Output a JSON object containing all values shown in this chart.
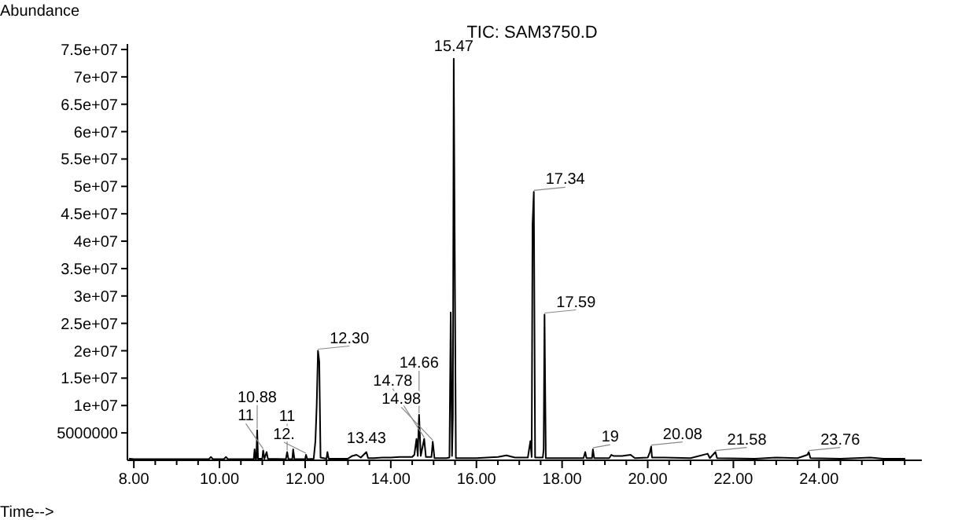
{
  "chart_data": {
    "type": "line",
    "title": "TIC: SAM3750.D",
    "xlabel": "Time-->",
    "ylabel": "Abundance",
    "xlim": [
      7.85,
      26.4
    ],
    "ylim": [
      0,
      76000000.0
    ],
    "xticks": [
      {
        "value": 8,
        "label": "8.00"
      },
      {
        "value": 8.5,
        "label": null
      },
      {
        "value": 9,
        "label": null
      },
      {
        "value": 9.5,
        "label": null
      },
      {
        "value": 10,
        "label": "10.00"
      },
      {
        "value": 10.5,
        "label": null
      },
      {
        "value": 11,
        "label": null
      },
      {
        "value": 11.5,
        "label": null
      },
      {
        "value": 12,
        "label": "12.00"
      },
      {
        "value": 12.5,
        "label": null
      },
      {
        "value": 13,
        "label": null
      },
      {
        "value": 13.5,
        "label": null
      },
      {
        "value": 14,
        "label": "14.00"
      },
      {
        "value": 14.5,
        "label": null
      },
      {
        "value": 15,
        "label": null
      },
      {
        "value": 15.5,
        "label": null
      },
      {
        "value": 16,
        "label": "16.00"
      },
      {
        "value": 16.5,
        "label": null
      },
      {
        "value": 17,
        "label": null
      },
      {
        "value": 17.5,
        "label": null
      },
      {
        "value": 18,
        "label": "18.00"
      },
      {
        "value": 18.5,
        "label": null
      },
      {
        "value": 19,
        "label": null
      },
      {
        "value": 19.5,
        "label": null
      },
      {
        "value": 20,
        "label": "20.00"
      },
      {
        "value": 20.5,
        "label": null
      },
      {
        "value": 21,
        "label": null
      },
      {
        "value": 21.5,
        "label": null
      },
      {
        "value": 22,
        "label": "22.00"
      },
      {
        "value": 22.5,
        "label": null
      },
      {
        "value": 23,
        "label": null
      },
      {
        "value": 23.5,
        "label": null
      },
      {
        "value": 24,
        "label": "24.00"
      },
      {
        "value": 24.5,
        "label": null
      },
      {
        "value": 25,
        "label": null
      },
      {
        "value": 25.5,
        "label": null
      },
      {
        "value": 26,
        "label": null
      }
    ],
    "yticks": [
      5000000,
      {
        "value": 10000000.0,
        "label": "1e+07"
      },
      {
        "value": 15000000.0,
        "label": "1.5e+07"
      },
      {
        "value": 20000000.0,
        "label": "2e+07"
      },
      {
        "value": 25000000.0,
        "label": "2.5e+07"
      },
      {
        "value": 30000000.0,
        "label": "3e+07"
      },
      {
        "value": 35000000.0,
        "label": "3.5e+07"
      },
      {
        "value": 40000000.0,
        "label": "4e+07"
      },
      {
        "value": 45000000.0,
        "label": "4.5e+07"
      },
      {
        "value": 50000000.0,
        "label": "5e+07"
      },
      {
        "value": 55000000.0,
        "label": "5.5e+07"
      },
      {
        "value": 60000000.0,
        "label": "6e+07"
      },
      {
        "value": 65000000.0,
        "label": "6.5e+07"
      },
      {
        "value": 70000000.0,
        "label": "7e+07"
      },
      {
        "value": 75000000.0,
        "label": "7.5e+07"
      }
    ],
    "grid": false,
    "marker": "none",
    "line_style": "solid",
    "series": [
      {
        "color": "#000000",
        "x": [
          7.9,
          8.0,
          9.75,
          9.8,
          9.85,
          10.1,
          10.15,
          10.2,
          10.8,
          10.82,
          10.84,
          10.86,
          10.88,
          10.9,
          11.0,
          11.02,
          11.05,
          11.1,
          11.13,
          11.55,
          11.58,
          11.61,
          11.7,
          11.72,
          11.75,
          12.0,
          12.02,
          12.05,
          12.2,
          12.24,
          12.27,
          12.3,
          12.33,
          12.36,
          12.5,
          12.52,
          12.55,
          13.0,
          13.1,
          13.2,
          13.3,
          13.43,
          13.47,
          13.6,
          13.8,
          14.0,
          14.2,
          14.4,
          14.5,
          14.55,
          14.6,
          14.63,
          14.66,
          14.7,
          14.78,
          14.82,
          14.95,
          14.98,
          15.02,
          15.3,
          15.37,
          15.4,
          15.43,
          15.45,
          15.47,
          15.52,
          16.0,
          16.5,
          16.7,
          16.9,
          17.2,
          17.26,
          17.29,
          17.31,
          17.34,
          17.37,
          17.55,
          17.57,
          17.59,
          17.62,
          18.5,
          18.54,
          18.57,
          18.7,
          18.72,
          18.75,
          19.1,
          19.15,
          19.2,
          19.4,
          19.6,
          19.7,
          20.0,
          20.05,
          20.08,
          20.1,
          20.4,
          21.0,
          21.4,
          21.45,
          21.58,
          21.62,
          22.5,
          23.0,
          23.5,
          23.73,
          23.76,
          23.8,
          24.5,
          25.2,
          25.5,
          26.0
        ],
        "values": [
          300000.0,
          200000.0,
          200000.0,
          600000.0,
          200000.0,
          200000.0,
          600000.0,
          200000.0,
          200000.0,
          2000000.0,
          300000.0,
          300000.0,
          5500000.0,
          300000.0,
          300000.0,
          1800000.0,
          300000.0,
          1500000.0,
          300000.0,
          200000.0,
          1500000.0,
          200000.0,
          200000.0,
          2000000.0,
          200000.0,
          200000.0,
          1000000.0,
          200000.0,
          300000.0,
          3500000.0,
          10000000.0,
          20000000.0,
          18000000.0,
          500000.0,
          300000.0,
          1500000.0,
          300000.0,
          300000.0,
          800000.0,
          1000000.0,
          500000.0,
          1500000.0,
          400000.0,
          400000.0,
          500000.0,
          500000.0,
          600000.0,
          600000.0,
          600000.0,
          1000000.0,
          3900000.0,
          800000.0,
          8300000.0,
          800000.0,
          3900000.0,
          600000.0,
          600000.0,
          3400000.0,
          400000.0,
          400000.0,
          500000.0,
          27000000.0,
          800000.0,
          8000000.0,
          73300000.0,
          400000.0,
          400000.0,
          600000.0,
          900000.0,
          500000.0,
          500000.0,
          3500000.0,
          600000.0,
          43000000.0,
          49000000.0,
          500000.0,
          500000.0,
          2000000.0,
          26600000.0,
          400000.0,
          400000.0,
          1500000.0,
          400000.0,
          400000.0,
          2000000.0,
          400000.0,
          400000.0,
          1000000.0,
          800000.0,
          800000.0,
          1000000.0,
          400000.0,
          500000.0,
          1500000.0,
          2500000.0,
          500000.0,
          500000.0,
          400000.0,
          1200000.0,
          400000.0,
          1500000.0,
          400000.0,
          300000.0,
          500000.0,
          400000.0,
          1000000.0,
          1500000.0,
          400000.0,
          300000.0,
          500000.0,
          300000.0,
          300000.0
        ]
      }
    ],
    "annotations": [
      {
        "text": "10.88",
        "x": 10.88,
        "y": 5500000
      },
      {
        "text": "11",
        "x": 11.02,
        "y": 1800000
      },
      {
        "text": "11",
        "x": 11.58,
        "y": 1500000
      },
      {
        "text": "12.",
        "x": 12.02,
        "y": 1000000
      },
      {
        "text": "12.30",
        "x": 12.3,
        "y": 20000000
      },
      {
        "text": "13.43",
        "x": 13.43,
        "y": 1500000
      },
      {
        "text": "14.66",
        "x": 14.66,
        "y": 8300000
      },
      {
        "text": "14.78",
        "x": 14.78,
        "y": 3900000
      },
      {
        "text": "14.98",
        "x": 14.98,
        "y": 3400000
      },
      {
        "text": "15.47",
        "x": 15.47,
        "y": 73300000
      },
      {
        "text": "17.34",
        "x": 17.34,
        "y": 49000000
      },
      {
        "text": "17.59",
        "x": 17.59,
        "y": 26600000
      },
      {
        "text": "19",
        "x": 18.72,
        "y": 2000000
      },
      {
        "text": "20.08",
        "x": 20.08,
        "y": 2500000
      },
      {
        "text": "21.58",
        "x": 21.58,
        "y": 1500000
      },
      {
        "text": "23.76",
        "x": 23.76,
        "y": 1500000
      }
    ]
  }
}
